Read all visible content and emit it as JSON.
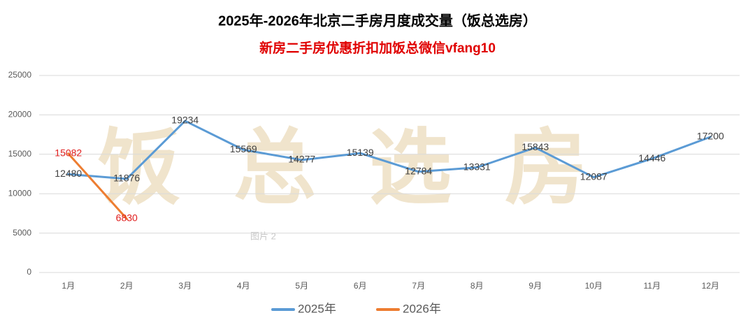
{
  "chart_data": {
    "type": "line",
    "title": "2025年-2026年北京二手房月度成交量（饭总选房）",
    "subtitle": "新房二手房优惠折扣加饭总微信vfang10",
    "annotations": [
      "饭总选房",
      "图片 2"
    ],
    "categories": [
      "1月",
      "2月",
      "3月",
      "4月",
      "5月",
      "6月",
      "7月",
      "8月",
      "9月",
      "10月",
      "11月",
      "12月"
    ],
    "series": [
      {
        "name": "2025年",
        "color": "#5b9bd5",
        "label_color": "#404040",
        "values": [
          12480,
          11876,
          19234,
          15569,
          14277,
          15139,
          12784,
          13331,
          15843,
          12087,
          14446,
          17200
        ]
      },
      {
        "name": "2026年",
        "color": "#ed7d31",
        "label_color": "#e02020",
        "values": [
          15082,
          6830,
          null,
          null,
          null,
          null,
          null,
          null,
          null,
          null,
          null,
          null
        ]
      }
    ],
    "ylim": [
      0,
      25000
    ],
    "yticks": [
      0,
      5000,
      10000,
      15000,
      20000,
      25000
    ],
    "grid": true,
    "legend": "bottom"
  }
}
